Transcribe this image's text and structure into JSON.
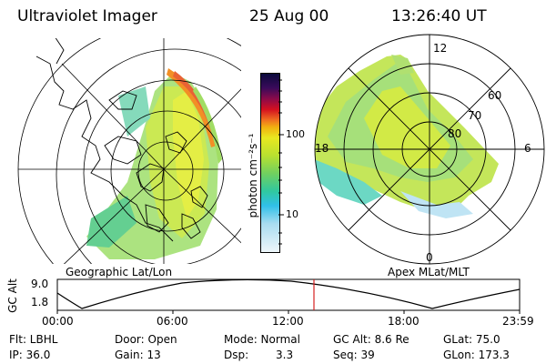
{
  "header": {
    "title": "Ultraviolet Imager",
    "date": "25 Aug 00",
    "time": "13:26:40 UT"
  },
  "left_panel": {
    "caption": "Geographic Lat/Lon"
  },
  "right_panel": {
    "caption": "Apex MLat/MLT",
    "mlt_labels": {
      "top": "12",
      "left": "18",
      "right": "6",
      "bottom": "0"
    },
    "lat_labels": [
      "60",
      "70",
      "80"
    ]
  },
  "colorbar": {
    "label": "photon cm⁻²s⁻¹",
    "ticks": [
      "100",
      "10"
    ],
    "scale": "log"
  },
  "altitude_plot": {
    "ylabel": "GC Alt",
    "yticks": [
      "9.0",
      "1.8"
    ],
    "xticks": [
      "00:00",
      "06:00",
      "12:00",
      "18:00",
      "23:59"
    ],
    "marker_time": "13:26:40"
  },
  "info": {
    "flt": "Flt: LBHL",
    "ip": "IP: 36.0",
    "door": "Door: Open",
    "gain": "Gain: 13",
    "mode": "Mode: Normal",
    "dsp": "Dsp:",
    "dsp_val": "3.3",
    "gcalt": "GC Alt: 8.6 Re",
    "seq": "Seq: 39",
    "glat": "GLat: 75.0",
    "glon": "GLon: 173.3"
  },
  "colors": {
    "marker": "#d42020",
    "grid": "#000000"
  }
}
